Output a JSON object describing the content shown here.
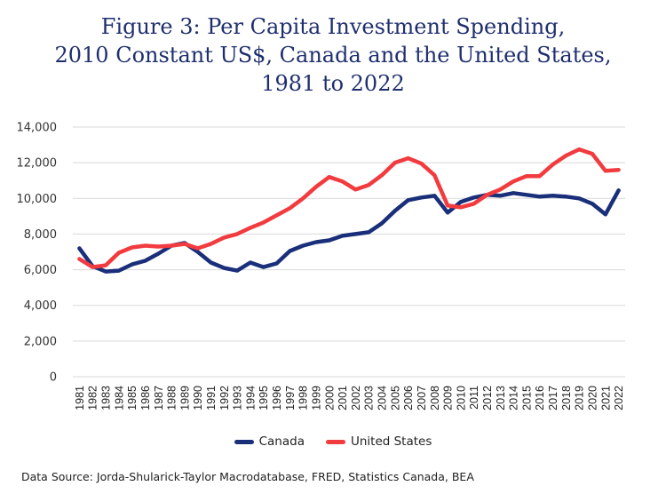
{
  "chart_data": {
    "type": "line",
    "title": "Figure 3: Per Capita Investment Spending,",
    "title_lines": [
      "Figure 3: Per Capita Investment Spending,",
      "2010 Constant US$, Canada and the United States,",
      "1981 to 2022"
    ],
    "xlabel": "",
    "ylabel": "",
    "ylim": [
      0,
      14000
    ],
    "yticks": [
      "0",
      "2,000",
      "4,000",
      "6,000",
      "8,000",
      "10,000",
      "12,000",
      "14,000"
    ],
    "ytick_values": [
      0,
      2000,
      4000,
      6000,
      8000,
      10000,
      12000,
      14000
    ],
    "grid": true,
    "legend_position": "bottom",
    "x": [
      "1981",
      "1982",
      "1983",
      "1984",
      "1985",
      "1986",
      "1987",
      "1988",
      "1989",
      "1990",
      "1991",
      "1992",
      "1993",
      "1994",
      "1995",
      "1996",
      "1997",
      "1998",
      "1999",
      "2000",
      "2001",
      "2002",
      "2003",
      "2004",
      "2005",
      "2006",
      "2007",
      "2008",
      "2009",
      "2010",
      "2011",
      "2012",
      "2013",
      "2014",
      "2015",
      "2016",
      "2017",
      "2018",
      "2019",
      "2020",
      "2021",
      "2022"
    ],
    "series": [
      {
        "name": "Canada",
        "color": "#1a2f7a",
        "values": [
          7200,
          6200,
          5900,
          5950,
          6300,
          6500,
          6900,
          7350,
          7500,
          7000,
          6400,
          6100,
          5950,
          6400,
          6150,
          6350,
          7050,
          7350,
          7550,
          7650,
          7900,
          8000,
          8100,
          8600,
          9300,
          9900,
          10050,
          10150,
          9200,
          9800,
          10050,
          10200,
          10150,
          10300,
          10200,
          10100,
          10150,
          10100,
          10000,
          9700,
          9100,
          10450
        ]
      },
      {
        "name": "United States",
        "color": "#f23b3f",
        "values": [
          6600,
          6150,
          6250,
          6950,
          7250,
          7350,
          7300,
          7350,
          7450,
          7200,
          7450,
          7800,
          8000,
          8350,
          8650,
          9050,
          9450,
          10000,
          10650,
          11200,
          10950,
          10500,
          10750,
          11300,
          12000,
          12250,
          11950,
          11300,
          9600,
          9500,
          9700,
          10200,
          10500,
          10950,
          11250,
          11250,
          11900,
          12400,
          12750,
          12500,
          11550,
          11600
        ]
      }
    ],
    "source": "Data Source: Jorda-Shularick-Taylor Macrodatabase, FRED, Statistics Canada, BEA"
  },
  "colors": {
    "title": "#1f2f6e",
    "grid": "#d9d9d9"
  }
}
